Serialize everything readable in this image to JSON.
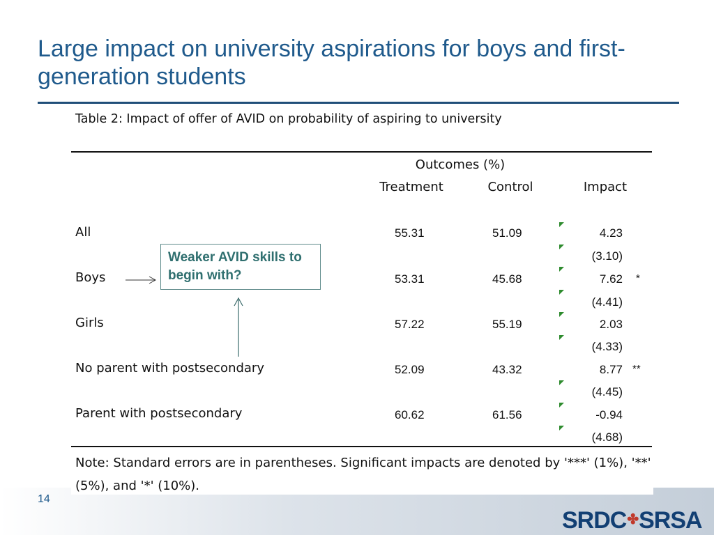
{
  "slide": {
    "title": "Large impact on university aspirations for boys and first-generation students",
    "page_number": "14"
  },
  "table": {
    "caption": "Table 2: Impact of offer of AVID on probability of aspiring to university",
    "group_header": "Outcomes (%)",
    "columns": [
      "Treatment",
      "Control",
      "Impact"
    ],
    "rows": [
      {
        "label": "All",
        "treatment": "55.31",
        "control": "51.09",
        "impact": "4.23",
        "se": "(3.10)",
        "sig": ""
      },
      {
        "label": "Boys",
        "treatment": "53.31",
        "control": "45.68",
        "impact": "7.62",
        "se": "(4.41)",
        "sig": "*"
      },
      {
        "label": "Girls",
        "treatment": "57.22",
        "control": "55.19",
        "impact": "2.03",
        "se": "(4.33)",
        "sig": ""
      },
      {
        "label": "No parent with postsecondary",
        "treatment": "52.09",
        "control": "43.32",
        "impact": "8.77",
        "se": "(4.45)",
        "sig": "**"
      },
      {
        "label": "Parent with postsecondary",
        "treatment": "60.62",
        "control": "61.56",
        "impact": "-0.94",
        "se": "(4.68)",
        "sig": ""
      }
    ],
    "note": "Note: Standard errors are in parentheses. Significant impacts are denoted by '***' (1%), '**' (5%), and '*' (10%)."
  },
  "callout": {
    "text": "Weaker AVID skills to begin with?"
  },
  "logo": {
    "left": "SRDC",
    "right": "SRSA",
    "leaf_icon": "maple-leaf-icon"
  },
  "colors": {
    "title": "#1f5a8c",
    "callout_text": "#2f6f6f",
    "marker": "#2e8b2e"
  }
}
